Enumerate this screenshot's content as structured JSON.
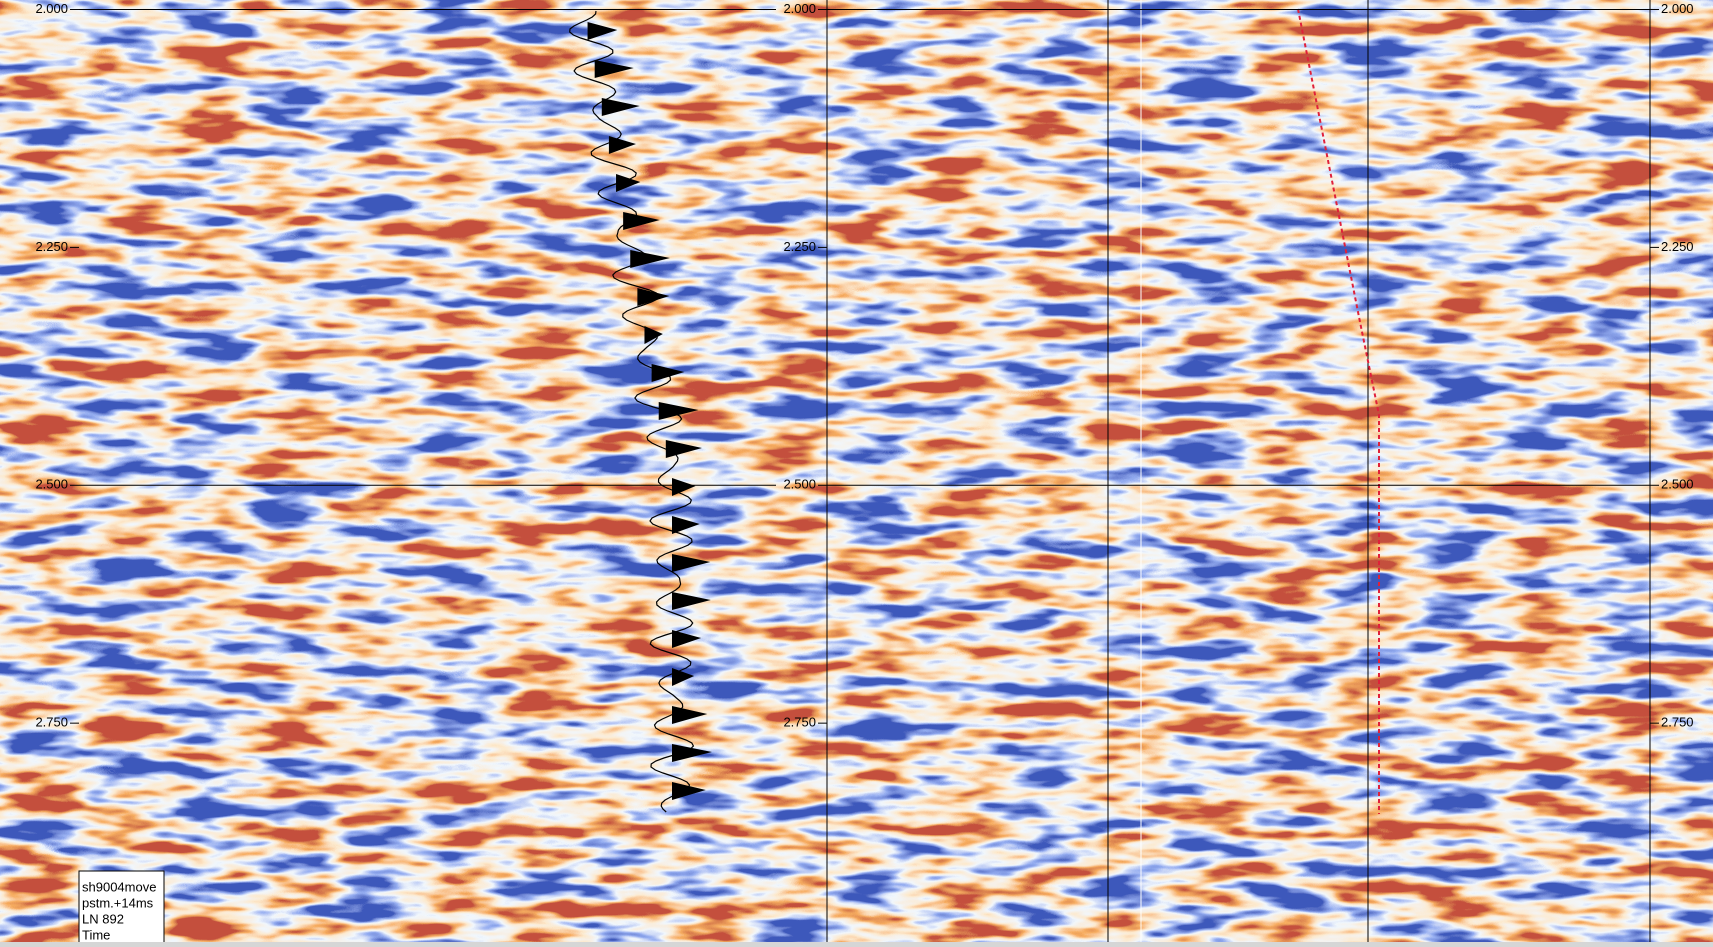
{
  "axis": {
    "lim": [
      1.99,
      2.98
    ],
    "ticks": [
      {
        "value": 2,
        "label": "2.000"
      },
      {
        "value": 2.25,
        "label": "2.250"
      },
      {
        "value": 2.5,
        "label": "2.500"
      },
      {
        "value": 2.75,
        "label": "2.750"
      }
    ]
  },
  "legend": {
    "lines": [
      "sh9004move",
      "pstm.+14ms",
      "LN 892",
      "Time"
    ]
  }
}
